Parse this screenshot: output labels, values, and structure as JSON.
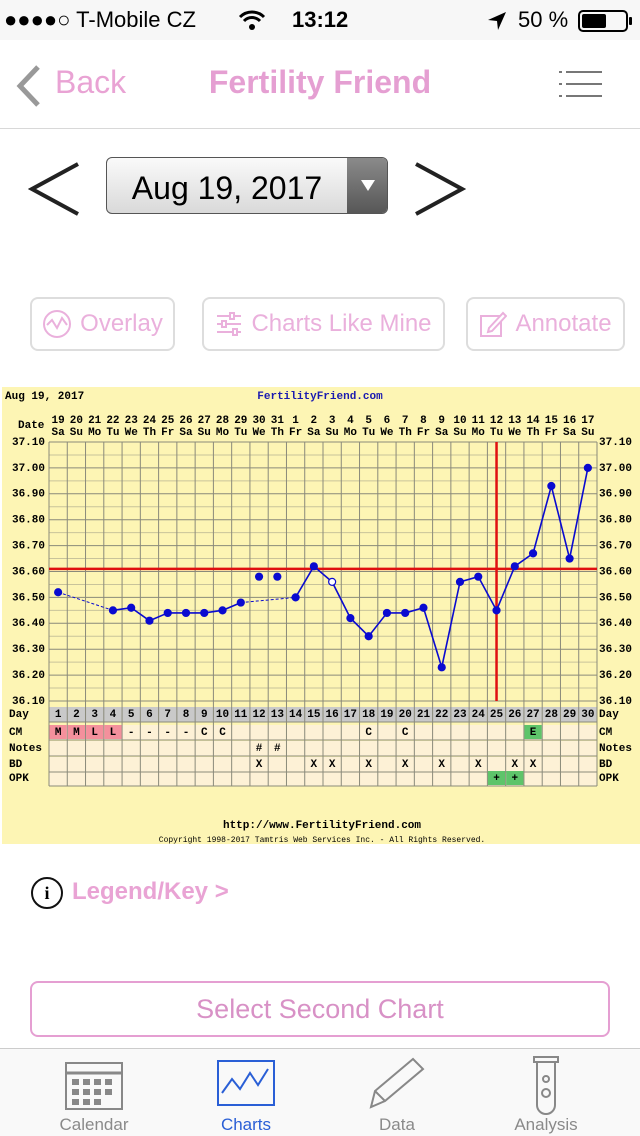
{
  "status_bar": {
    "carrier": "●●●●○ T-Mobile CZ",
    "time": "13:12",
    "battery": "50 %"
  },
  "nav": {
    "back": "Back",
    "title": "Fertility Friend"
  },
  "date_picker": {
    "date": "Aug 19, 2017"
  },
  "actions": [
    "Overlay",
    "Charts Like Mine",
    "Annotate"
  ],
  "chart_data": {
    "type": "line",
    "header_date": "Aug 19, 2017",
    "site": "FertilityFriend.com",
    "row_labels": {
      "date": "Date",
      "day": "Day",
      "cm": "CM",
      "notes": "Notes",
      "bd": "BD",
      "opk": "OPK"
    },
    "dates": [
      "19",
      "20",
      "21",
      "22",
      "23",
      "24",
      "25",
      "26",
      "27",
      "28",
      "29",
      "30",
      "31",
      "1",
      "2",
      "3",
      "4",
      "5",
      "6",
      "7",
      "8",
      "9",
      "10",
      "11",
      "12",
      "13",
      "14",
      "15",
      "16",
      "17"
    ],
    "weekdays": [
      "Sa",
      "Su",
      "Mo",
      "Tu",
      "We",
      "Th",
      "Fr",
      "Sa",
      "Su",
      "Mo",
      "Tu",
      "We",
      "Th",
      "Fr",
      "Sa",
      "Su",
      "Mo",
      "Tu",
      "We",
      "Th",
      "Fr",
      "Sa",
      "Su",
      "Mo",
      "Tu",
      "We",
      "Th",
      "Fr",
      "Sa",
      "Su"
    ],
    "x": [
      1,
      2,
      3,
      4,
      5,
      6,
      7,
      8,
      9,
      10,
      11,
      12,
      13,
      14,
      15,
      16,
      17,
      18,
      19,
      20,
      21,
      22,
      23,
      24,
      25,
      26,
      27,
      28,
      29,
      30
    ],
    "xlim": [
      0.5,
      30.5
    ],
    "values": [
      36.52,
      null,
      null,
      36.45,
      36.46,
      36.41,
      36.44,
      36.44,
      36.44,
      36.45,
      36.48,
      36.58,
      36.58,
      36.5,
      36.62,
      36.56,
      36.42,
      36.35,
      36.44,
      36.44,
      36.46,
      36.23,
      36.56,
      36.58,
      36.45,
      36.62,
      36.67,
      36.93,
      36.65,
      37.0
    ],
    "color": "#0a0ad0",
    "discarded_days": [
      12,
      13
    ],
    "open_days": [
      16
    ],
    "ylim": [
      36.1,
      37.1
    ],
    "yticks": [
      {
        "value": 36.1,
        "label": "36.10"
      },
      {
        "value": 36.2,
        "label": "36.20"
      },
      {
        "value": 36.3,
        "label": "36.30"
      },
      {
        "value": 36.4,
        "label": "36.40"
      },
      {
        "value": 36.5,
        "label": "36.50"
      },
      {
        "value": 36.6,
        "label": "36.60"
      },
      {
        "value": 36.7,
        "label": "36.70"
      },
      {
        "value": 36.8,
        "label": "36.80"
      },
      {
        "value": 36.9,
        "label": "36.90"
      },
      {
        "value": 37.0,
        "label": "37.00"
      },
      {
        "value": 37.1,
        "label": "37.10"
      }
    ],
    "minor_yticks": [
      36.15,
      36.25,
      36.35,
      36.45,
      36.55,
      36.65,
      36.75,
      36.85,
      36.95,
      37.05
    ],
    "coverline": 36.61,
    "ovulation_day": 25,
    "marker_color": "#e01010",
    "cm": [
      "M",
      "M",
      "L",
      "L",
      "-",
      "-",
      "-",
      "-",
      "C",
      "C",
      null,
      null,
      null,
      null,
      null,
      null,
      null,
      "C",
      null,
      "C",
      null,
      null,
      null,
      null,
      null,
      null,
      "E",
      null,
      null,
      null
    ],
    "cm_colors": [
      "#f4909c",
      "#f4909c",
      "#f4909c",
      "#f4909c",
      null,
      null,
      null,
      null,
      null,
      null,
      null,
      null,
      null,
      null,
      null,
      null,
      null,
      null,
      null,
      null,
      null,
      null,
      null,
      null,
      null,
      null,
      "#5ec46a",
      null,
      null,
      null
    ],
    "notes": [
      null,
      null,
      null,
      null,
      null,
      null,
      null,
      null,
      null,
      null,
      null,
      "#",
      "#",
      null,
      null,
      null,
      null,
      null,
      null,
      null,
      null,
      null,
      null,
      null,
      null,
      null,
      null,
      null,
      null,
      null
    ],
    "bd": [
      null,
      null,
      null,
      null,
      null,
      null,
      null,
      null,
      null,
      null,
      null,
      "X",
      null,
      null,
      "X",
      "X",
      null,
      "X",
      null,
      "X",
      null,
      "X",
      null,
      "X",
      null,
      "X",
      "X",
      null,
      null,
      null
    ],
    "opk": [
      null,
      null,
      null,
      null,
      null,
      null,
      null,
      null,
      null,
      null,
      null,
      null,
      null,
      null,
      null,
      null,
      null,
      null,
      null,
      null,
      null,
      null,
      null,
      null,
      "+",
      "+",
      null,
      null,
      null,
      null
    ],
    "opk_colors": [
      null,
      null,
      null,
      null,
      null,
      null,
      null,
      null,
      null,
      null,
      null,
      null,
      null,
      null,
      null,
      null,
      null,
      null,
      null,
      null,
      null,
      null,
      null,
      null,
      "#5ec46a",
      "#5ec46a",
      null,
      null,
      null,
      null
    ],
    "footer_url": "http://www.FertilityFriend.com",
    "copyright": "Copyright 1998-2017 Tamtris Web Services Inc. - All Rights Reserved."
  },
  "legend_link": "Legend/Key >",
  "second_chart_button": "Select Second Chart",
  "tabs": [
    "Calendar",
    "Charts",
    "Data",
    "Analysis"
  ],
  "selected_tab": 1
}
